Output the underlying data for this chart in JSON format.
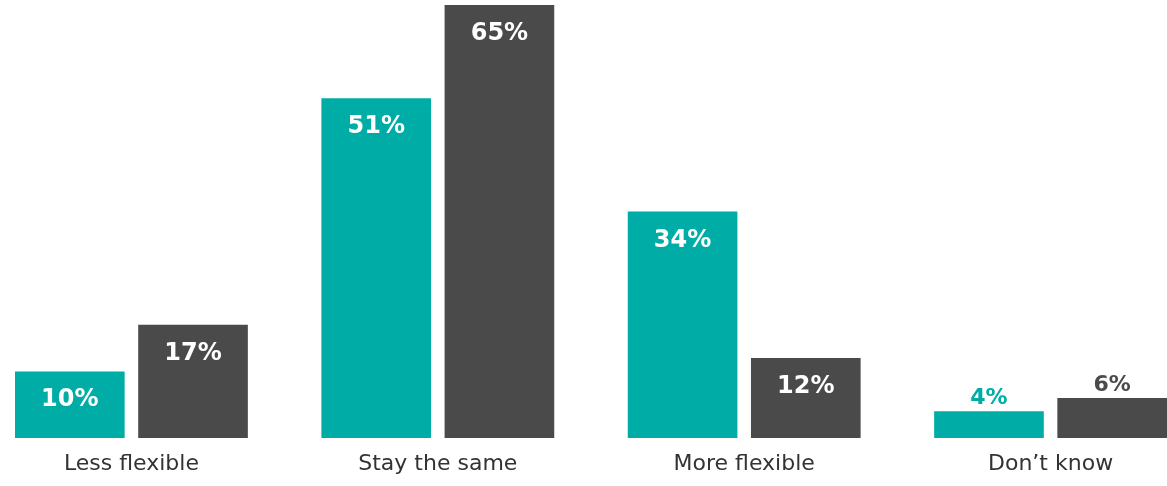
{
  "chart_data": {
    "type": "bar",
    "categories": [
      "Less flexible",
      "Stay the same",
      "More flexible",
      "Don’t know"
    ],
    "series": [
      {
        "color": "#00aca6",
        "values": [
          10,
          51,
          34,
          4
        ],
        "value_labels": [
          "10%",
          "51%",
          "34%",
          "4%"
        ]
      },
      {
        "color": "#4a4a4a",
        "values": [
          17,
          65,
          12,
          6
        ],
        "value_labels": [
          "17%",
          "65%",
          "12%",
          "6%"
        ]
      }
    ],
    "tick_labels": "x",
    "legend": false
  }
}
